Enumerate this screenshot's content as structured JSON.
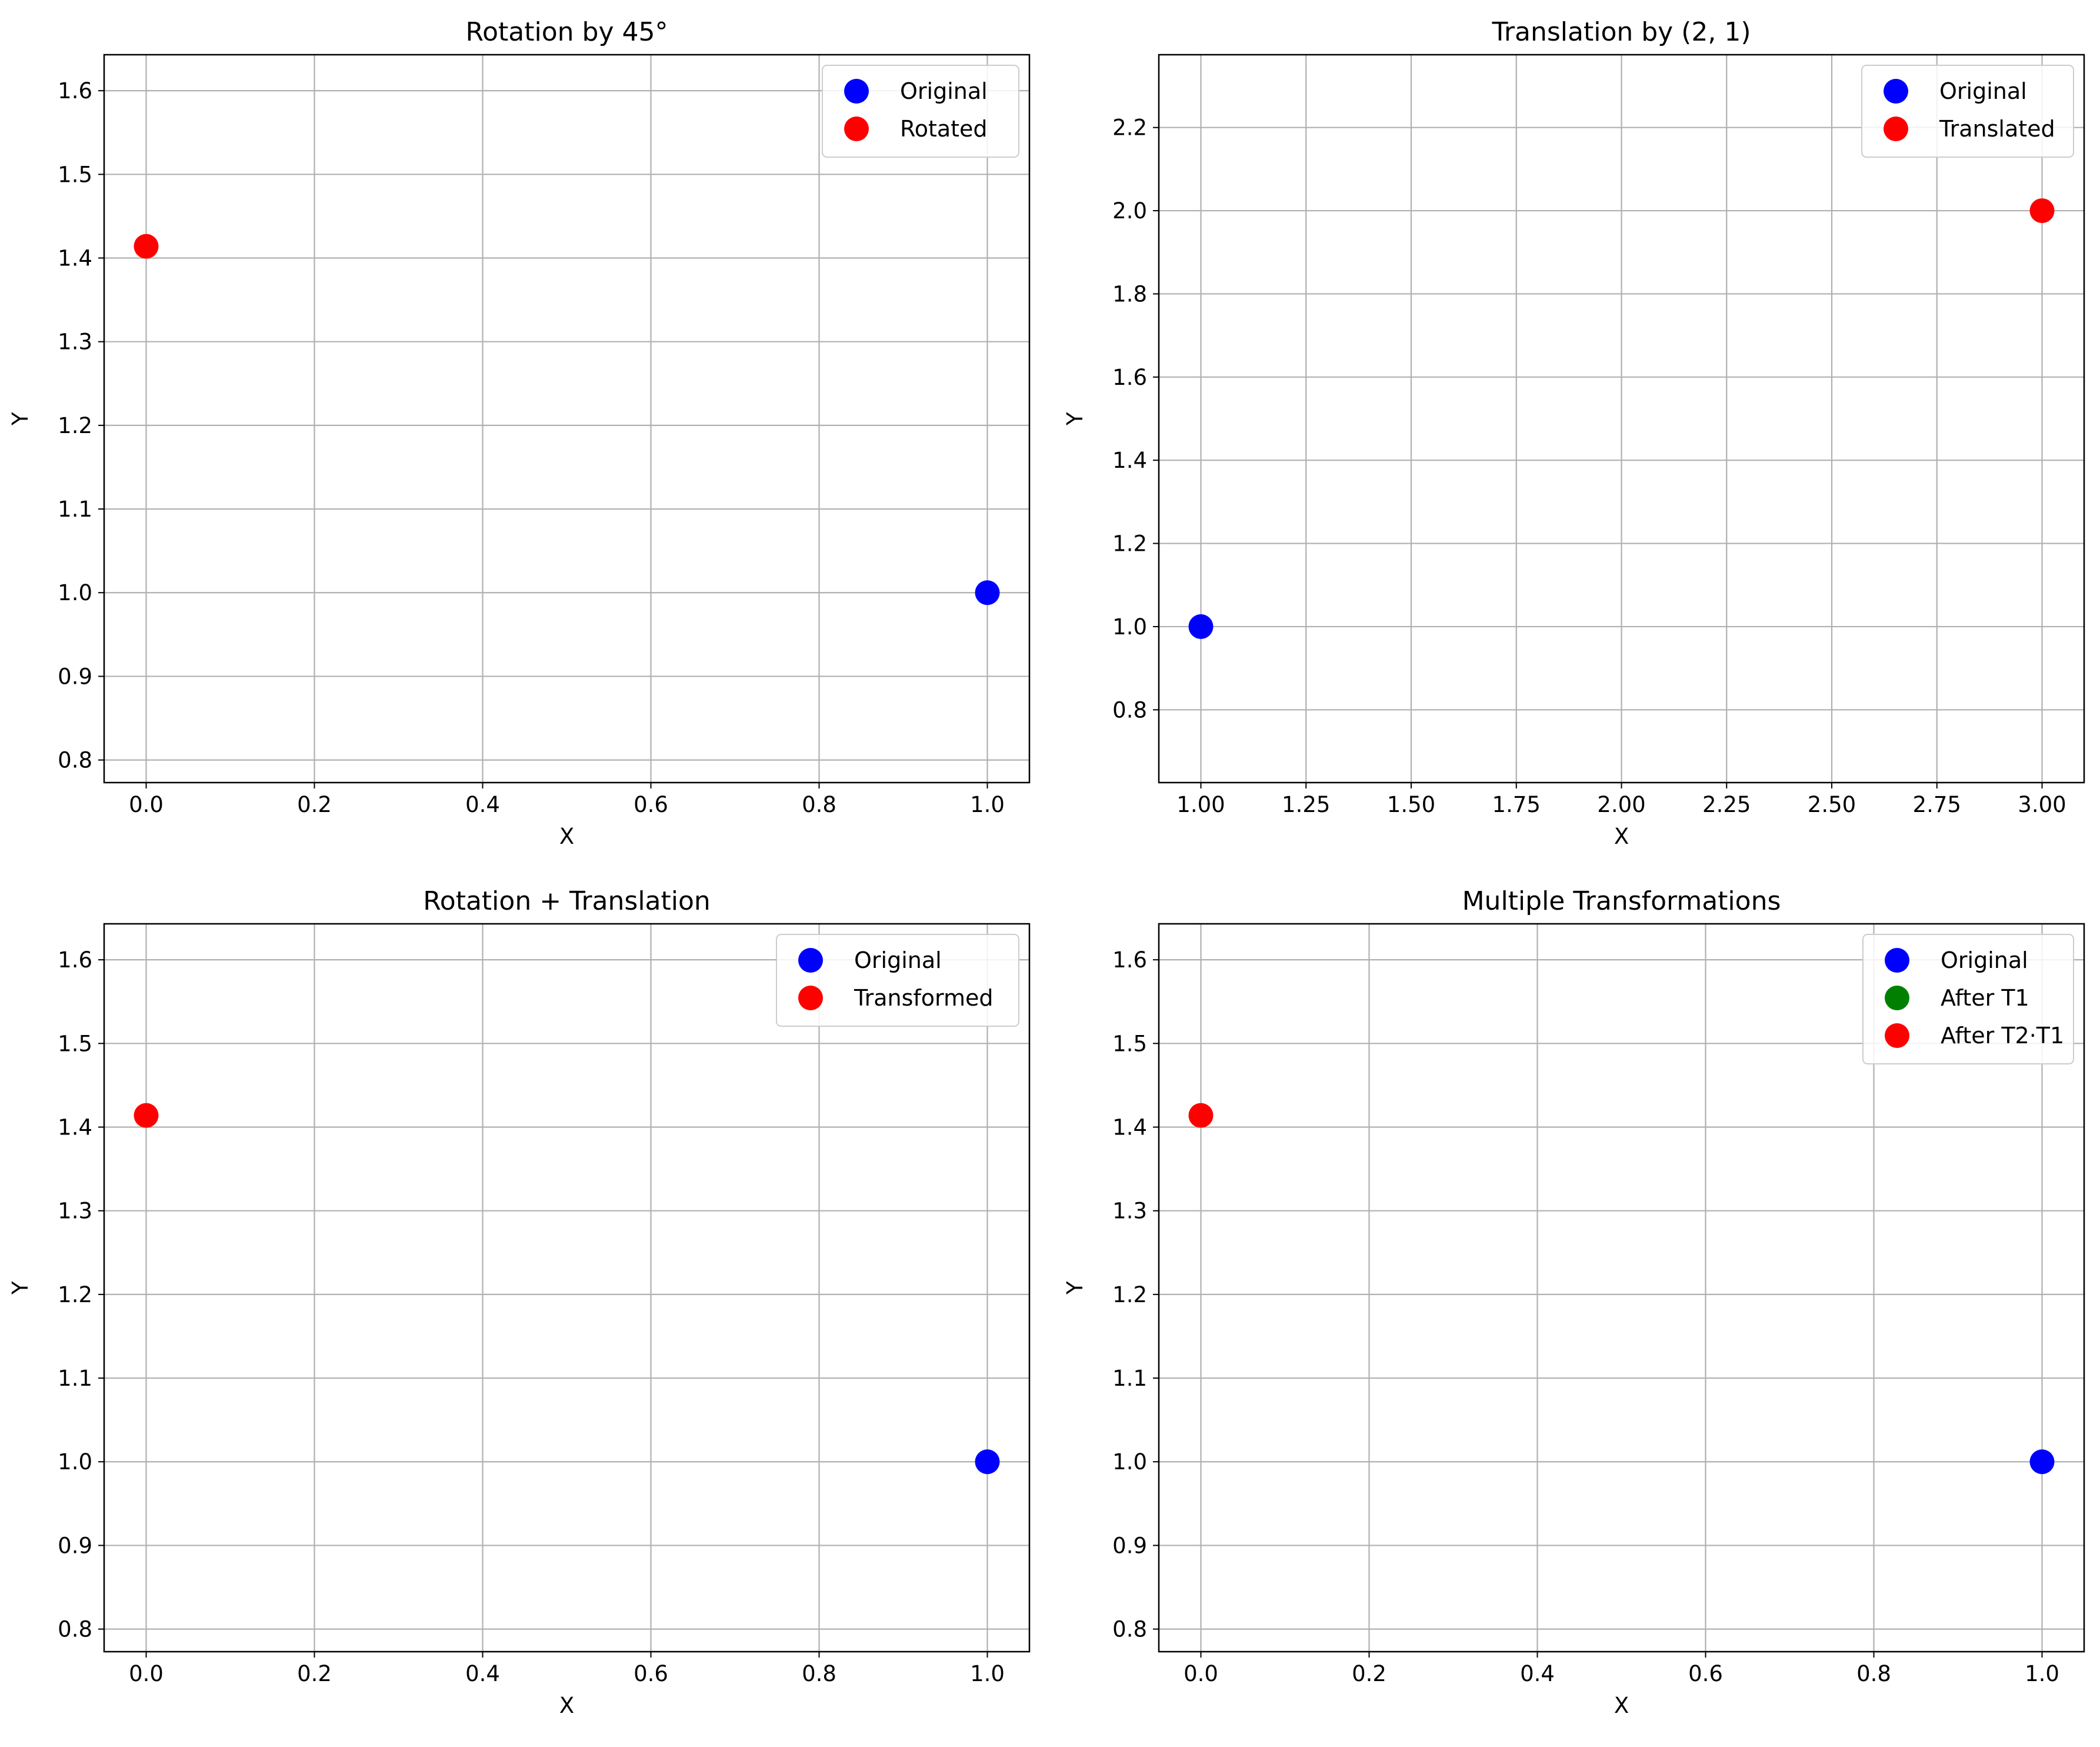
{
  "chart_data": [
    {
      "type": "scatter",
      "title": "Rotation by 45°",
      "xlabel": "X",
      "ylabel": "Y",
      "xlim": [
        -0.05,
        1.05
      ],
      "ylim": [
        0.773,
        1.643
      ],
      "grid": true,
      "legend_position": "top-right",
      "xticks": [
        "0.0",
        "0.2",
        "0.4",
        "0.6",
        "0.8",
        "1.0"
      ],
      "yticks": [
        "0.8",
        "0.9",
        "1.0",
        "1.1",
        "1.2",
        "1.3",
        "1.4",
        "1.5",
        "1.6"
      ],
      "series": [
        {
          "name": "Original",
          "color": "#0000ff",
          "points": [
            [
              1.0,
              1.0
            ]
          ]
        },
        {
          "name": "Rotated",
          "color": "#ff0000",
          "points": [
            [
              0.0,
              1.414
            ]
          ]
        }
      ]
    },
    {
      "type": "scatter",
      "title": "Translation by (2, 1)",
      "xlabel": "X",
      "ylabel": "Y",
      "xlim": [
        0.9,
        3.1
      ],
      "ylim": [
        0.625,
        2.375
      ],
      "grid": true,
      "legend_position": "top-right",
      "xticks": [
        "1.00",
        "1.25",
        "1.50",
        "1.75",
        "2.00",
        "2.25",
        "2.50",
        "2.75",
        "3.00"
      ],
      "yticks": [
        "0.8",
        "1.0",
        "1.2",
        "1.4",
        "1.6",
        "1.8",
        "2.0",
        "2.2"
      ],
      "series": [
        {
          "name": "Original",
          "color": "#0000ff",
          "points": [
            [
              1.0,
              1.0
            ]
          ]
        },
        {
          "name": "Translated",
          "color": "#ff0000",
          "points": [
            [
              3.0,
              2.0
            ]
          ]
        }
      ]
    },
    {
      "type": "scatter",
      "title": "Rotation + Translation",
      "xlabel": "X",
      "ylabel": "Y",
      "xlim": [
        -0.05,
        1.05
      ],
      "ylim": [
        0.773,
        1.643
      ],
      "grid": true,
      "legend_position": "top-right",
      "xticks": [
        "0.0",
        "0.2",
        "0.4",
        "0.6",
        "0.8",
        "1.0"
      ],
      "yticks": [
        "0.8",
        "0.9",
        "1.0",
        "1.1",
        "1.2",
        "1.3",
        "1.4",
        "1.5",
        "1.6"
      ],
      "series": [
        {
          "name": "Original",
          "color": "#0000ff",
          "points": [
            [
              1.0,
              1.0
            ]
          ]
        },
        {
          "name": "Transformed",
          "color": "#ff0000",
          "points": [
            [
              0.0,
              1.414
            ]
          ]
        }
      ]
    },
    {
      "type": "scatter",
      "title": "Multiple Transformations",
      "xlabel": "X",
      "ylabel": "Y",
      "xlim": [
        -0.05,
        1.05
      ],
      "ylim": [
        0.773,
        1.643
      ],
      "grid": true,
      "legend_position": "top-right",
      "xticks": [
        "0.0",
        "0.2",
        "0.4",
        "0.6",
        "0.8",
        "1.0"
      ],
      "yticks": [
        "0.8",
        "0.9",
        "1.0",
        "1.1",
        "1.2",
        "1.3",
        "1.4",
        "1.5",
        "1.6"
      ],
      "series": [
        {
          "name": "Original",
          "color": "#0000ff",
          "points": [
            [
              1.0,
              1.0
            ]
          ]
        },
        {
          "name": "After T1",
          "color": "#008000",
          "points": []
        },
        {
          "name": "After T2·T1",
          "color": "#ff0000",
          "points": [
            [
              0.0,
              1.414
            ]
          ]
        }
      ]
    }
  ]
}
